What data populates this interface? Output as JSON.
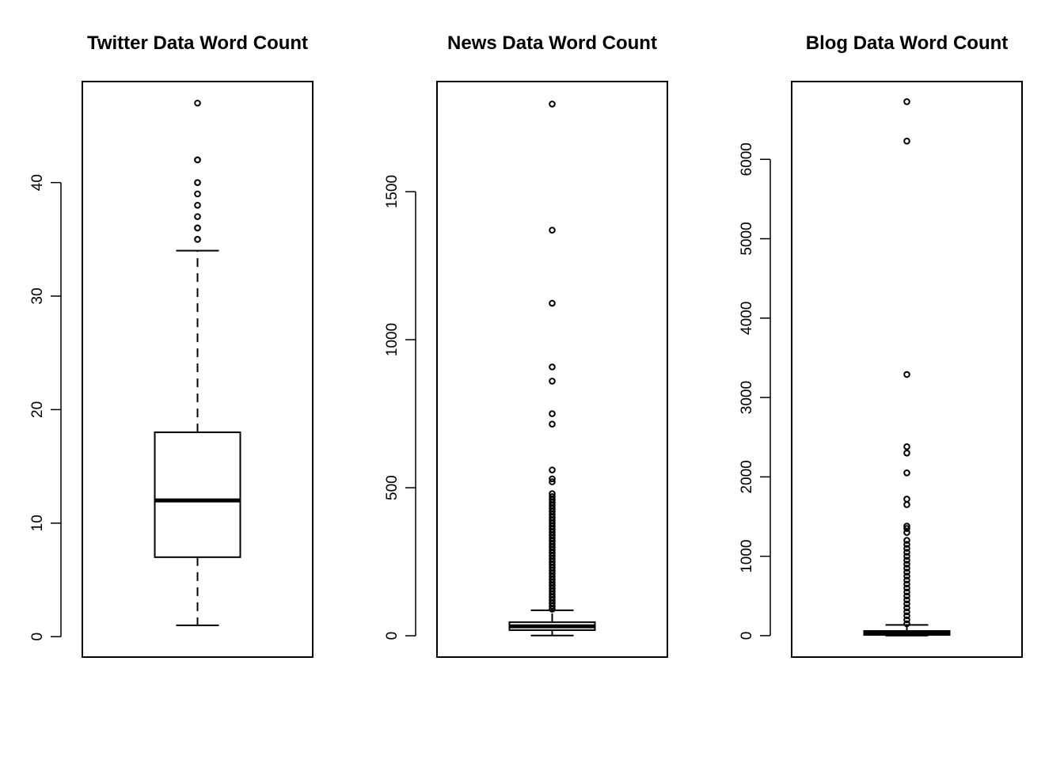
{
  "chart_data": [
    {
      "type": "box",
      "title": "Twitter Data Word Count",
      "ylim": [
        -1.8,
        48.9
      ],
      "yticks": [
        0,
        10,
        20,
        30,
        40
      ],
      "ytick_labels": [
        "0",
        "10",
        "20",
        "30",
        "40"
      ],
      "box": {
        "whisker_low": 1,
        "q1": 7,
        "median": 12,
        "q3": 18,
        "whisker_high": 34
      },
      "outliers": [
        35,
        35,
        36,
        36,
        37,
        38,
        39,
        40,
        40,
        42,
        42,
        47
      ]
    },
    {
      "type": "box",
      "title": "News Data Word Count",
      "ylim": [
        -72,
        1872
      ],
      "yticks": [
        0,
        500,
        1000,
        1500
      ],
      "ytick_labels": [
        "0",
        "500",
        "1000",
        "1500"
      ],
      "box": {
        "whisker_low": 1,
        "q1": 19,
        "median": 32,
        "q3": 46,
        "whisker_high": 86
      },
      "outliers": [
        90,
        100,
        110,
        120,
        130,
        140,
        150,
        160,
        170,
        180,
        190,
        200,
        210,
        220,
        230,
        240,
        250,
        260,
        270,
        280,
        290,
        300,
        310,
        320,
        330,
        340,
        350,
        360,
        370,
        380,
        390,
        400,
        410,
        420,
        430,
        440,
        450,
        460,
        470,
        480,
        520,
        530,
        560,
        715,
        750,
        860,
        908,
        1123,
        1370,
        1796
      ]
    },
    {
      "type": "box",
      "title": "Blog Data Word Count",
      "ylim": [
        -270,
        6980
      ],
      "yticks": [
        0,
        1000,
        2000,
        3000,
        4000,
        5000,
        6000
      ],
      "ytick_labels": [
        "0",
        "1000",
        "2000",
        "3000",
        "4000",
        "5000",
        "6000"
      ],
      "box": {
        "whisker_low": 1,
        "q1": 9,
        "median": 28,
        "q3": 59,
        "whisker_high": 135
      },
      "outliers": [
        150,
        200,
        250,
        300,
        350,
        400,
        450,
        500,
        550,
        600,
        650,
        700,
        750,
        800,
        850,
        900,
        950,
        1000,
        1050,
        1100,
        1150,
        1200,
        1300,
        1350,
        1380,
        1650,
        1720,
        2050,
        2300,
        2380,
        3290,
        6230,
        6726
      ]
    }
  ]
}
